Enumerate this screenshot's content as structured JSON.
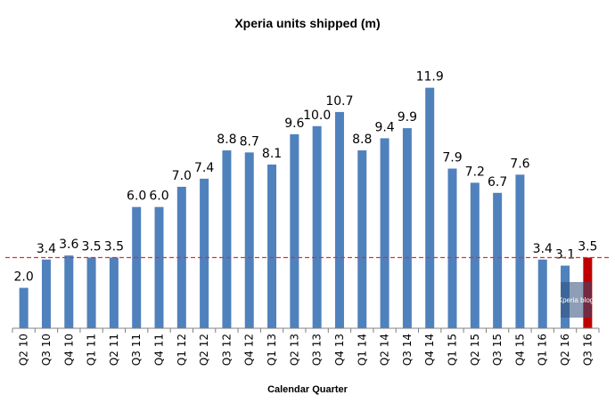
{
  "chart_data": {
    "type": "bar",
    "title": "Xperia units shipped (m)",
    "xlabel": "Calendar Quarter",
    "ylabel": "",
    "categories": [
      "Q2 10",
      "Q3 10",
      "Q4 10",
      "Q1 11",
      "Q2 11",
      "Q3 11",
      "Q4 11",
      "Q1 12",
      "Q2 12",
      "Q3 12",
      "Q4 12",
      "Q1 13",
      "Q2 13",
      "Q3 13",
      "Q4 13",
      "Q1 14",
      "Q2 14",
      "Q3 14",
      "Q4 14",
      "Q1 15",
      "Q2 15",
      "Q3 15",
      "Q4 15",
      "Q1 16",
      "Q2 16",
      "Q3 16"
    ],
    "values": [
      2.0,
      3.4,
      3.6,
      3.5,
      3.5,
      6.0,
      6.0,
      7.0,
      7.4,
      8.8,
      8.7,
      8.1,
      9.6,
      10.0,
      10.7,
      8.8,
      9.4,
      9.9,
      11.9,
      7.9,
      7.2,
      6.7,
      7.6,
      3.4,
      3.1,
      3.5
    ],
    "data_labels": [
      "2.0",
      "3.4",
      "3.6",
      "3.5",
      "3.5",
      "6.0",
      "6.0",
      "7.0",
      "7.4",
      "8.8",
      "8.7",
      "8.1",
      "9.6",
      "10.0",
      "10.7",
      "8.8",
      "9.4",
      "9.9",
      "11.9",
      "7.9",
      "7.2",
      "6.7",
      "7.6",
      "3.4",
      "3.1",
      "3.5"
    ],
    "ylim": [
      0,
      12.5
    ],
    "grid": false,
    "reference_line": 3.5,
    "bar_color": "#4f81bd",
    "highlight_color": "#c00000",
    "reference_line_color": "#e03030",
    "highlight_index": 25,
    "watermark": "Xperia blog"
  }
}
